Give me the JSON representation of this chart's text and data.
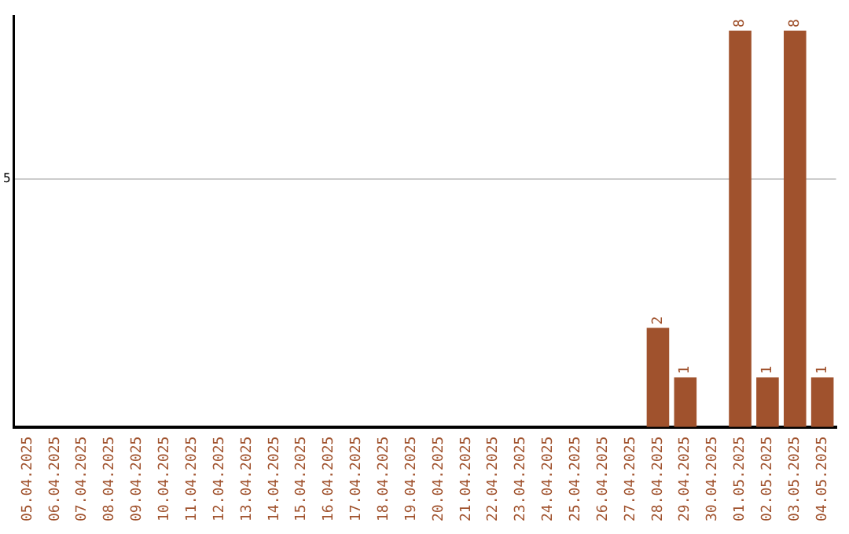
{
  "chart_data": {
    "type": "bar",
    "categories": [
      "05.04.2025",
      "06.04.2025",
      "07.04.2025",
      "08.04.2025",
      "09.04.2025",
      "10.04.2025",
      "11.04.2025",
      "12.04.2025",
      "13.04.2025",
      "14.04.2025",
      "15.04.2025",
      "16.04.2025",
      "17.04.2025",
      "18.04.2025",
      "19.04.2025",
      "20.04.2025",
      "21.04.2025",
      "22.04.2025",
      "23.04.2025",
      "24.04.2025",
      "25.04.2025",
      "26.04.2025",
      "27.04.2025",
      "28.04.2025",
      "29.04.2025",
      "30.04.2025",
      "01.05.2025",
      "02.05.2025",
      "03.05.2025",
      "04.05.2025"
    ],
    "values": [
      null,
      null,
      null,
      null,
      null,
      null,
      null,
      null,
      null,
      null,
      null,
      null,
      null,
      null,
      null,
      null,
      null,
      null,
      null,
      null,
      null,
      null,
      null,
      2,
      1,
      null,
      8,
      1,
      8,
      1
    ],
    "value_labels": [
      null,
      null,
      null,
      null,
      null,
      null,
      null,
      null,
      null,
      null,
      null,
      null,
      null,
      null,
      null,
      null,
      null,
      null,
      null,
      null,
      null,
      null,
      null,
      "2",
      "1",
      null,
      "8",
      "1",
      "8",
      "1"
    ],
    "color": "#a0522d",
    "ylim": [
      0,
      8.3
    ],
    "yticks": [
      5
    ],
    "grid": "y",
    "legend": false
  }
}
